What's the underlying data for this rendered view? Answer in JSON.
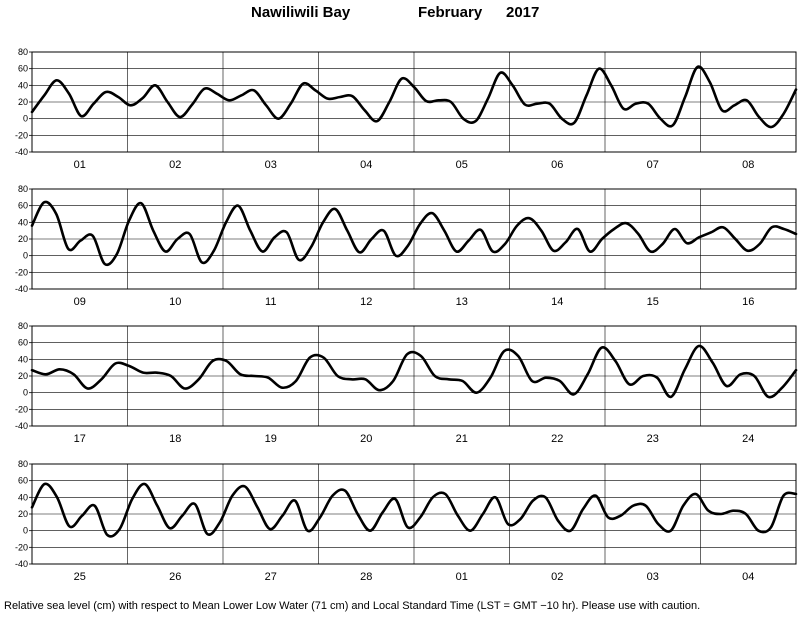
{
  "title": {
    "station": "Nawiliwili Bay",
    "month": "February",
    "year": "2017"
  },
  "footer": "Relative sea level (cm) with respect to Mean Lower Low Water (71 cm) and Local Standard Time (LST = GMT −10 hr). Please use with caution.",
  "line_color": "#000000",
  "chart_data": [
    {
      "type": "line",
      "x_unit": "day",
      "days": [
        "01",
        "02",
        "03",
        "04",
        "05",
        "06",
        "07",
        "08"
      ],
      "ylim": [
        -40,
        80
      ],
      "yticks": [
        -40,
        -20,
        0,
        20,
        40,
        60,
        80
      ],
      "grid": true,
      "series": [
        {
          "values": [
            8,
            28,
            46,
            30,
            3,
            18,
            32,
            26,
            16,
            25,
            40,
            20,
            2,
            17,
            36,
            30,
            22,
            28,
            34,
            16,
            0,
            18,
            42,
            34,
            24,
            26,
            27,
            10,
            -3,
            20,
            48,
            38,
            21,
            22,
            20,
            0,
            -3,
            24,
            55,
            40,
            17,
            18,
            18,
            0,
            -5,
            28,
            60,
            40,
            12,
            18,
            18,
            0,
            -8,
            26,
            62,
            44,
            10,
            16,
            22,
            2,
            -10,
            6,
            35
          ]
        }
      ]
    },
    {
      "type": "line",
      "x_unit": "day",
      "days": [
        "09",
        "10",
        "11",
        "12",
        "13",
        "14",
        "15",
        "16"
      ],
      "ylim": [
        -40,
        80
      ],
      "yticks": [
        -40,
        -20,
        0,
        20,
        40,
        60,
        80
      ],
      "grid": true,
      "series": [
        {
          "values": [
            36,
            64,
            50,
            8,
            18,
            24,
            -10,
            2,
            42,
            63,
            30,
            5,
            20,
            26,
            -8,
            6,
            40,
            60,
            30,
            5,
            22,
            28,
            -5,
            10,
            40,
            56,
            30,
            4,
            20,
            30,
            0,
            12,
            38,
            51,
            30,
            5,
            18,
            31,
            5,
            14,
            36,
            45,
            30,
            6,
            16,
            32,
            5,
            20,
            32,
            39,
            26,
            5,
            14,
            32,
            15,
            22,
            28,
            34,
            20,
            6,
            14,
            34,
            32,
            26
          ]
        }
      ]
    },
    {
      "type": "line",
      "x_unit": "day",
      "days": [
        "17",
        "18",
        "19",
        "20",
        "21",
        "22",
        "23",
        "24"
      ],
      "ylim": [
        -40,
        80
      ],
      "yticks": [
        -40,
        -20,
        0,
        20,
        40,
        60,
        80
      ],
      "grid": true,
      "series": [
        {
          "values": [
            27,
            22,
            28,
            22,
            5,
            16,
            35,
            32,
            24,
            24,
            20,
            5,
            16,
            38,
            38,
            22,
            20,
            18,
            6,
            14,
            42,
            42,
            20,
            16,
            16,
            3,
            14,
            46,
            44,
            20,
            16,
            14,
            0,
            18,
            50,
            44,
            14,
            18,
            14,
            -2,
            22,
            54,
            38,
            10,
            20,
            18,
            -5,
            28,
            56,
            36,
            8,
            22,
            20,
            -5,
            6,
            27
          ]
        }
      ]
    },
    {
      "type": "line",
      "x_unit": "day",
      "days": [
        "25",
        "26",
        "27",
        "28",
        "01",
        "02",
        "03",
        "04"
      ],
      "ylim": [
        -40,
        80
      ],
      "yticks": [
        -40,
        -20,
        0,
        20,
        40,
        60,
        80
      ],
      "grid": true,
      "series": [
        {
          "values": [
            28,
            56,
            40,
            5,
            18,
            30,
            -5,
            2,
            38,
            56,
            30,
            3,
            18,
            32,
            -4,
            10,
            42,
            53,
            28,
            2,
            18,
            36,
            0,
            16,
            42,
            48,
            20,
            0,
            22,
            38,
            4,
            16,
            40,
            44,
            18,
            0,
            20,
            40,
            8,
            14,
            36,
            40,
            12,
            0,
            26,
            42,
            16,
            18,
            30,
            30,
            8,
            0,
            30,
            44,
            24,
            20,
            24,
            20,
            0,
            4,
            42,
            44
          ]
        }
      ]
    }
  ]
}
